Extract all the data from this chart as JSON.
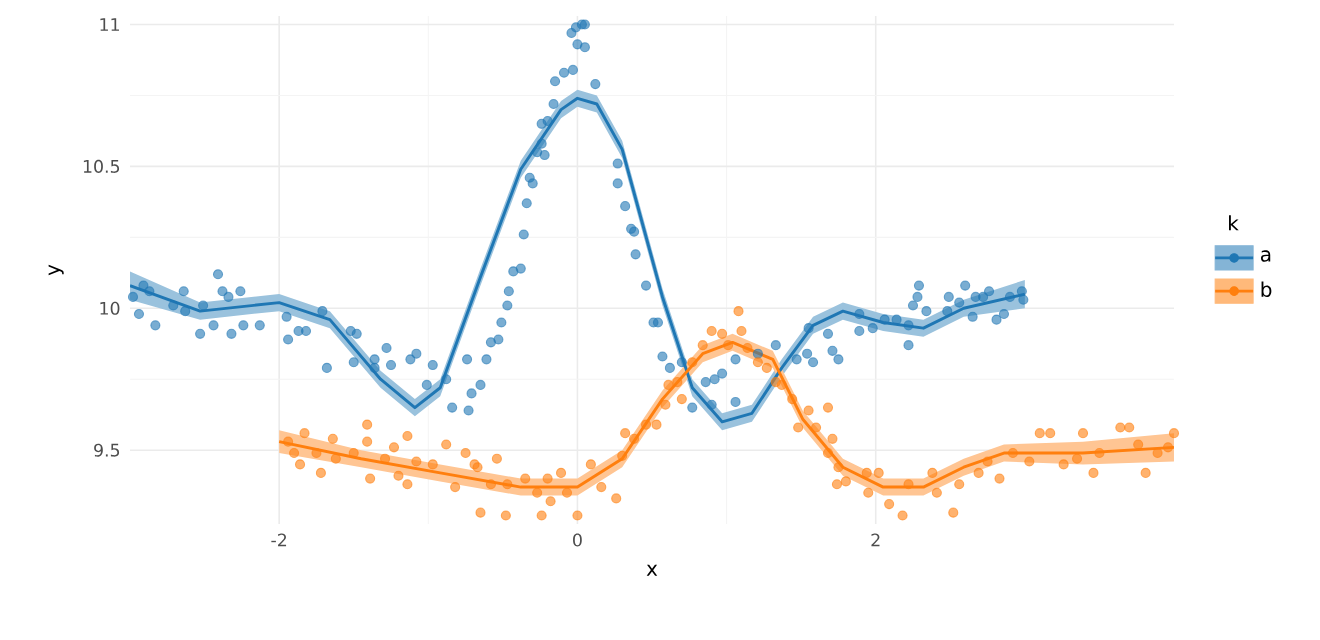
{
  "chart_data": {
    "type": "scatter",
    "xlabel": "x",
    "ylabel": "y",
    "legend_title": "k",
    "legend": "right",
    "grid": true,
    "xlim": [
      -3.0,
      4.0
    ],
    "ylim": [
      9.24,
      11.03
    ],
    "xticks": [
      -2,
      0,
      2
    ],
    "yticks": [
      9.5,
      10,
      10.5,
      11
    ],
    "series": [
      {
        "color": "#1f77b4",
        "x": [
          -2.98,
          -2.91,
          -2.87,
          -2.94,
          -2.83,
          -2.71,
          -2.64,
          -2.63,
          -2.51,
          -2.53,
          -2.44,
          -2.41,
          -2.38,
          -2.34,
          -2.32,
          -2.26,
          -2.24,
          -2.13,
          -1.95,
          -1.94,
          -1.87,
          -1.82,
          -1.71,
          -1.68,
          -1.52,
          -1.48,
          -1.5,
          -1.36,
          -1.28,
          -1.36,
          -1.25,
          -1.12,
          -1.08,
          -1.01,
          -0.97,
          -0.88,
          -0.84,
          -0.73,
          -0.74,
          -0.71,
          -0.65,
          -0.61,
          -0.58,
          -0.53,
          -0.51,
          -0.47,
          -0.46,
          -0.43,
          -0.38,
          -0.36,
          -0.34,
          -0.32,
          -0.3,
          -0.27,
          -0.24,
          -0.22,
          -0.24,
          -0.2,
          -0.16,
          -0.15,
          -0.09,
          -0.03,
          -0.04,
          -0.01,
          0.03,
          0.05,
          0.0,
          0.05,
          0.12,
          0.27,
          0.27,
          0.32,
          0.36,
          0.38,
          0.39,
          0.46,
          0.51,
          0.54,
          0.57,
          0.62,
          0.7,
          0.77,
          0.86,
          0.9,
          0.92,
          0.97,
          1.06,
          1.06,
          1.21,
          1.33,
          1.47,
          1.54,
          1.55,
          1.58,
          1.68,
          1.71,
          1.75,
          1.89,
          1.89,
          1.98,
          2.06,
          2.14,
          2.22,
          2.22,
          2.25,
          2.28,
          2.29,
          2.34,
          2.48,
          2.49,
          2.56,
          2.6,
          2.65,
          2.67,
          2.72,
          2.76,
          2.81,
          2.86,
          2.9,
          2.98,
          2.99
        ],
        "values": [
          10.04,
          10.08,
          10.06,
          9.98,
          9.94,
          10.01,
          10.06,
          9.99,
          10.01,
          9.91,
          9.94,
          10.12,
          10.06,
          10.04,
          9.91,
          10.06,
          9.94,
          9.94,
          9.97,
          9.89,
          9.92,
          9.92,
          9.99,
          9.79,
          9.92,
          9.91,
          9.81,
          9.82,
          9.86,
          9.79,
          9.8,
          9.82,
          9.84,
          9.73,
          9.8,
          9.75,
          9.65,
          9.64,
          9.82,
          9.7,
          9.73,
          9.82,
          9.88,
          9.89,
          9.95,
          10.01,
          10.06,
          10.13,
          10.14,
          10.26,
          10.37,
          10.46,
          10.44,
          10.55,
          10.58,
          10.54,
          10.65,
          10.66,
          10.72,
          10.8,
          10.83,
          10.84,
          10.97,
          10.99,
          11.0,
          11.0,
          10.93,
          10.92,
          10.79,
          10.51,
          10.44,
          10.36,
          10.28,
          10.27,
          10.19,
          10.08,
          9.95,
          9.95,
          9.83,
          9.79,
          9.81,
          9.65,
          9.74,
          9.66,
          9.75,
          9.77,
          9.67,
          9.82,
          9.84,
          9.87,
          9.82,
          9.84,
          9.93,
          9.81,
          9.91,
          9.85,
          9.82,
          9.98,
          9.92,
          9.93,
          9.96,
          9.96,
          9.87,
          9.94,
          10.01,
          10.04,
          10.08,
          9.99,
          9.99,
          10.04,
          10.02,
          10.08,
          9.97,
          10.04,
          10.04,
          10.06,
          9.96,
          9.98,
          10.04,
          10.06,
          10.03
        ]
      },
      {
        "color": "#ff7f0e",
        "x": [
          -1.94,
          -1.9,
          -1.83,
          -1.86,
          -1.75,
          -1.72,
          -1.64,
          -1.62,
          -1.5,
          -1.41,
          -1.41,
          -1.39,
          -1.29,
          -1.23,
          -1.2,
          -1.14,
          -1.14,
          -1.08,
          -0.97,
          -0.88,
          -0.82,
          -0.75,
          -0.69,
          -0.65,
          -0.67,
          -0.58,
          -0.54,
          -0.48,
          -0.47,
          -0.35,
          -0.27,
          -0.24,
          -0.2,
          -0.18,
          -0.11,
          -0.07,
          0.0,
          0.09,
          0.16,
          0.26,
          0.3,
          0.32,
          0.38,
          0.46,
          0.53,
          0.59,
          0.61,
          0.67,
          0.7,
          0.77,
          0.84,
          0.9,
          0.97,
          1.01,
          1.08,
          1.1,
          1.14,
          1.21,
          1.27,
          1.33,
          1.37,
          1.44,
          1.48,
          1.55,
          1.68,
          1.6,
          1.71,
          1.68,
          1.75,
          1.74,
          1.8,
          1.94,
          1.95,
          2.02,
          2.09,
          2.18,
          2.22,
          2.38,
          2.41,
          2.52,
          2.56,
          2.69,
          2.75,
          2.83,
          2.92,
          3.03,
          3.1,
          3.17,
          3.26,
          3.35,
          3.39,
          3.46,
          3.5,
          3.64,
          3.7,
          3.76,
          3.81,
          3.89,
          3.96,
          4.0
        ],
        "values": [
          9.53,
          9.49,
          9.56,
          9.45,
          9.49,
          9.42,
          9.54,
          9.47,
          9.49,
          9.59,
          9.53,
          9.4,
          9.47,
          9.51,
          9.41,
          9.55,
          9.38,
          9.46,
          9.45,
          9.52,
          9.37,
          9.49,
          9.45,
          9.28,
          9.44,
          9.38,
          9.47,
          9.27,
          9.38,
          9.4,
          9.35,
          9.27,
          9.4,
          9.32,
          9.42,
          9.35,
          9.27,
          9.45,
          9.37,
          9.33,
          9.48,
          9.56,
          9.54,
          9.59,
          9.59,
          9.66,
          9.73,
          9.74,
          9.68,
          9.81,
          9.87,
          9.92,
          9.91,
          9.87,
          9.99,
          9.92,
          9.86,
          9.81,
          9.79,
          9.74,
          9.73,
          9.68,
          9.58,
          9.64,
          9.65,
          9.58,
          9.54,
          9.49,
          9.44,
          9.38,
          9.39,
          9.42,
          9.35,
          9.42,
          9.31,
          9.27,
          9.38,
          9.42,
          9.35,
          9.28,
          9.38,
          9.42,
          9.46,
          9.4,
          9.49,
          9.46,
          9.56,
          9.56,
          9.45,
          9.47,
          9.56,
          9.42,
          9.49,
          9.58,
          9.58,
          9.52,
          9.42,
          9.49,
          9.51,
          9.56
        ]
      },
      {
        "type": "line",
        "name": "a",
        "color": "#1f77b4",
        "x": [
          -3.0,
          -2.53,
          -2.0,
          -1.66,
          -1.32,
          -1.09,
          -0.92,
          -0.65,
          -0.38,
          -0.11,
          0.0,
          0.13,
          0.3,
          0.57,
          0.77,
          0.97,
          1.17,
          1.37,
          1.58,
          1.78,
          2.05,
          2.32,
          2.59,
          3.0
        ],
        "values": [
          10.08,
          9.99,
          10.02,
          9.96,
          9.75,
          9.65,
          9.72,
          10.11,
          10.49,
          10.7,
          10.74,
          10.72,
          10.56,
          10.04,
          9.72,
          9.6,
          9.63,
          9.79,
          9.94,
          9.99,
          9.95,
          9.93,
          10.0,
          10.05
        ],
        "lower": [
          10.03,
          9.96,
          9.99,
          9.93,
          9.72,
          9.62,
          9.69,
          10.08,
          10.46,
          10.67,
          10.71,
          10.69,
          10.53,
          10.01,
          9.69,
          9.57,
          9.6,
          9.76,
          9.91,
          9.96,
          9.92,
          9.9,
          9.97,
          10.0
        ],
        "upper": [
          10.13,
          10.02,
          10.05,
          9.99,
          9.78,
          9.68,
          9.75,
          10.14,
          10.52,
          10.73,
          10.77,
          10.75,
          10.59,
          10.07,
          9.75,
          9.63,
          9.66,
          9.82,
          9.97,
          10.02,
          9.98,
          9.96,
          10.03,
          10.1
        ]
      },
      {
        "type": "line",
        "name": "b",
        "color": "#ff7f0e",
        "x": [
          -2.0,
          -1.45,
          -0.92,
          -0.38,
          0.0,
          0.3,
          0.57,
          0.84,
          1.04,
          1.31,
          1.51,
          1.78,
          2.05,
          2.32,
          2.59,
          2.86,
          3.39,
          4.0
        ],
        "values": [
          9.53,
          9.47,
          9.42,
          9.37,
          9.37,
          9.47,
          9.68,
          9.84,
          9.88,
          9.82,
          9.61,
          9.44,
          9.37,
          9.37,
          9.44,
          9.49,
          9.49,
          9.51
        ],
        "lower": [
          9.49,
          9.44,
          9.39,
          9.34,
          9.34,
          9.44,
          9.65,
          9.81,
          9.85,
          9.79,
          9.58,
          9.41,
          9.34,
          9.34,
          9.41,
          9.46,
          9.45,
          9.46
        ],
        "upper": [
          9.57,
          9.5,
          9.45,
          9.4,
          9.4,
          9.5,
          9.71,
          9.87,
          9.91,
          9.85,
          9.64,
          9.47,
          9.4,
          9.4,
          9.47,
          9.52,
          9.53,
          9.56
        ]
      }
    ]
  }
}
